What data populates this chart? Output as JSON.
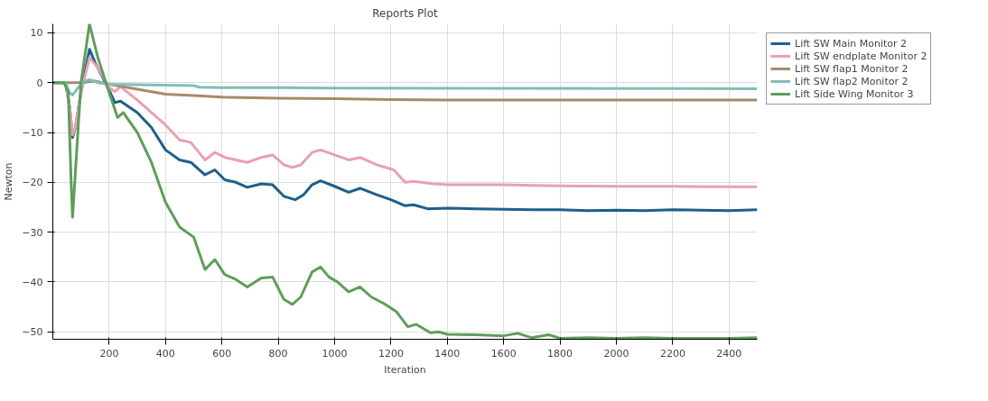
{
  "chart_data": {
    "type": "line",
    "title": "Reports Plot",
    "xlabel": "Iteration",
    "ylabel": "Newton",
    "xlim": [
      0,
      2500
    ],
    "ylim": [
      -51.5,
      11.8
    ],
    "xticks": [
      200,
      400,
      600,
      800,
      1000,
      1200,
      1400,
      1600,
      1800,
      2000,
      2200,
      2400
    ],
    "yticks": [
      -50,
      -40,
      -30,
      -20,
      -10,
      0,
      10
    ],
    "grid": true,
    "legend": "top right",
    "marker": "none",
    "line_style": "solid",
    "series": [
      {
        "name": "Lift SW Main Monitor 2",
        "color": "#1f5f8b",
        "x": [
          0,
          45,
          60,
          70,
          80,
          100,
          130,
          150,
          200,
          220,
          240,
          300,
          350,
          400,
          450,
          490,
          540,
          575,
          610,
          650,
          690,
          740,
          780,
          820,
          860,
          890,
          920,
          950,
          1000,
          1050,
          1090,
          1150,
          1200,
          1250,
          1280,
          1330,
          1400,
          1500,
          1600,
          1700,
          1800,
          1900,
          2000,
          2100,
          2200,
          2300,
          2400,
          2500
        ],
        "values": [
          0,
          0,
          -5,
          -11,
          -9,
          -2,
          6.7,
          4,
          -1.5,
          -4,
          -3.7,
          -6,
          -9,
          -13.5,
          -15.5,
          -16,
          -18.5,
          -17.5,
          -19.5,
          -20,
          -21,
          -20.3,
          -20.5,
          -22.8,
          -23.5,
          -22.5,
          -20.5,
          -19.7,
          -20.8,
          -22,
          -21.2,
          -22.5,
          -23.5,
          -24.7,
          -24.5,
          -25.3,
          -25.2,
          -25.3,
          -25.4,
          -25.5,
          -25.5,
          -25.7,
          -25.6,
          -25.7,
          -25.5,
          -25.6,
          -25.7,
          -25.5
        ]
      },
      {
        "name": "Lift SW endplate Monitor 2",
        "color": "#e8a0b4",
        "x": [
          0,
          45,
          60,
          70,
          80,
          100,
          130,
          160,
          200,
          220,
          240,
          300,
          350,
          400,
          450,
          490,
          540,
          575,
          610,
          650,
          690,
          740,
          780,
          820,
          850,
          880,
          920,
          950,
          1000,
          1050,
          1090,
          1150,
          1210,
          1250,
          1280,
          1350,
          1400,
          1500,
          1600,
          1700,
          1800,
          2000,
          2200,
          2400,
          2500
        ],
        "values": [
          0,
          0,
          -5,
          -10.5,
          -9,
          -2,
          5,
          3,
          -1,
          -1.8,
          -0.8,
          -3.5,
          -6,
          -8.5,
          -11.5,
          -12,
          -15.5,
          -14,
          -15,
          -15.5,
          -16,
          -15,
          -14.5,
          -16.5,
          -17,
          -16.5,
          -14,
          -13.5,
          -14.5,
          -15.5,
          -15,
          -16.5,
          -17.5,
          -20,
          -19.8,
          -20.3,
          -20.5,
          -20.5,
          -20.5,
          -20.6,
          -20.7,
          -20.8,
          -20.8,
          -20.9,
          -20.9
        ]
      },
      {
        "name": "Lift SW flap1 Monitor 2",
        "color": "#a88a6a",
        "x": [
          0,
          100,
          150,
          200,
          300,
          400,
          500,
          600,
          800,
          1000,
          1200,
          1400,
          1800,
          2500
        ],
        "values": [
          0,
          0,
          0.3,
          -0.3,
          -1.3,
          -2.3,
          -2.6,
          -2.9,
          -3.1,
          -3.2,
          -3.4,
          -3.5,
          -3.5,
          -3.5
        ]
      },
      {
        "name": "Lift SW flap2 Monitor 2",
        "color": "#7fbfb8",
        "x": [
          0,
          45,
          60,
          70,
          90,
          110,
          130,
          160,
          200,
          300,
          500,
          520,
          600,
          800,
          1000,
          2500
        ],
        "values": [
          0,
          0,
          -2,
          -2.5,
          -1,
          0.3,
          0.6,
          0,
          -0.3,
          -0.4,
          -0.6,
          -0.9,
          -1.0,
          -1.0,
          -1.1,
          -1.2
        ]
      },
      {
        "name": "Lift Side Wing Monitor 3",
        "color": "#5e9e5a",
        "x": [
          0,
          40,
          55,
          65,
          70,
          80,
          100,
          130,
          160,
          200,
          230,
          250,
          300,
          350,
          400,
          450,
          500,
          540,
          575,
          610,
          650,
          690,
          740,
          780,
          820,
          850,
          880,
          920,
          950,
          980,
          1010,
          1050,
          1090,
          1130,
          1180,
          1220,
          1260,
          1290,
          1340,
          1370,
          1400,
          1500,
          1600,
          1650,
          1700,
          1760,
          1800,
          1900,
          2000,
          2100,
          2200,
          2300,
          2400,
          2500
        ],
        "values": [
          0,
          0,
          -2,
          -20,
          -27,
          -18,
          0,
          11.8,
          5,
          -2,
          -7,
          -6,
          -10,
          -16,
          -24,
          -29,
          -31,
          -37.5,
          -35.5,
          -38.5,
          -39.5,
          -41,
          -39.2,
          -39,
          -43.5,
          -44.5,
          -43,
          -38,
          -37,
          -39,
          -40,
          -42,
          -41,
          -43,
          -44.5,
          -46,
          -49,
          -48.5,
          -50.2,
          -50,
          -50.5,
          -50.6,
          -50.8,
          -50.3,
          -51.2,
          -50.6,
          -51.3,
          -51.2,
          -51.3,
          -51.2,
          -51.3,
          -51.3,
          -51.3,
          -51.2
        ]
      }
    ]
  }
}
